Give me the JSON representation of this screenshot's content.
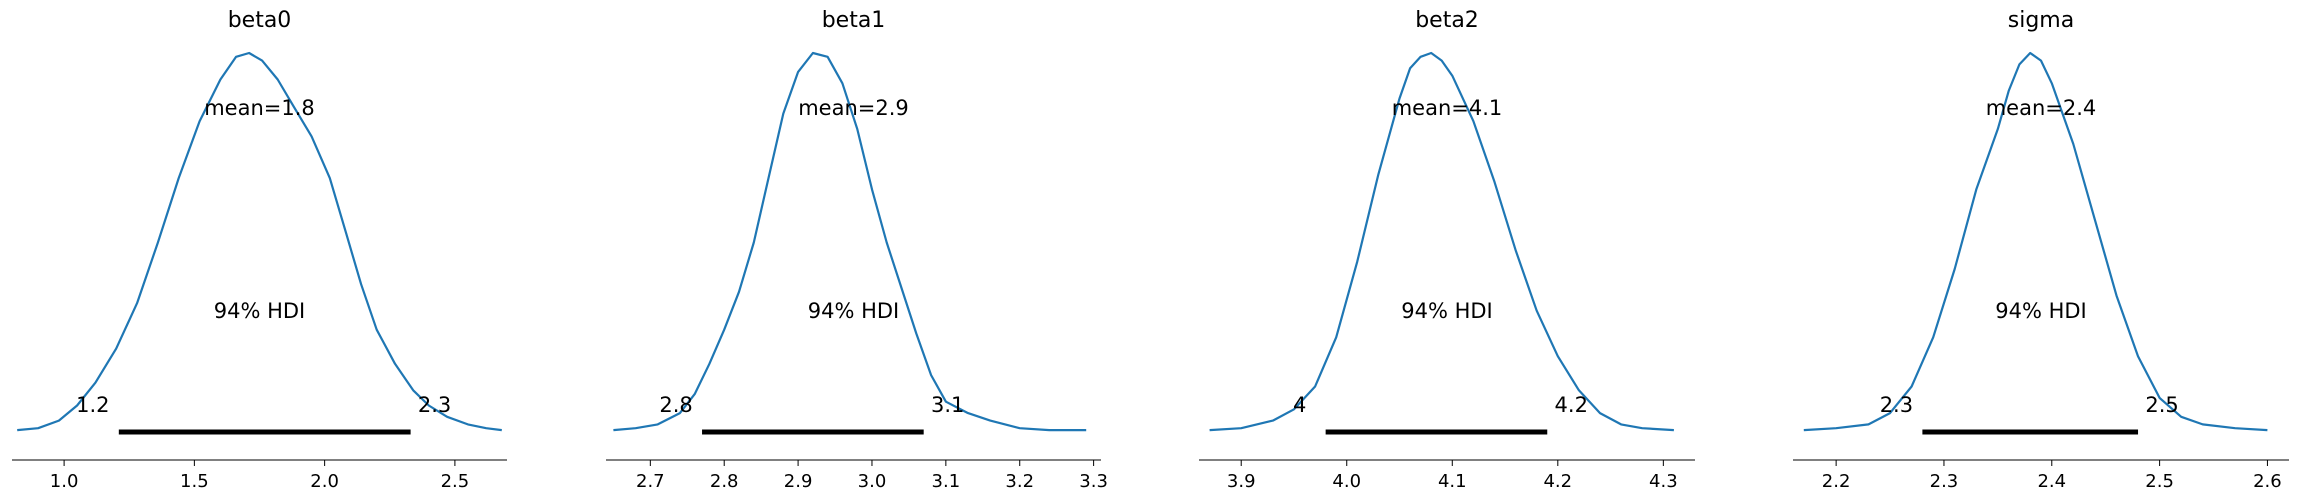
{
  "colors": {
    "density": "#1f77b4",
    "hdi_bar": "#000000",
    "axis": "#000000"
  },
  "chart_data": [
    {
      "type": "area",
      "title": "beta0",
      "mean_label": "mean=1.8",
      "hdi_label": "94% HDI",
      "hdi": [
        1.21,
        2.33
      ],
      "hdi_tick_labels": [
        "1.2",
        "2.3"
      ],
      "xlim": [
        0.8,
        2.7
      ],
      "xticks": [
        1.0,
        1.5,
        2.0,
        2.5
      ],
      "xtick_labels": [
        "1.0",
        "1.5",
        "2.0",
        "2.5"
      ],
      "density": {
        "x": [
          0.82,
          0.9,
          0.98,
          1.05,
          1.12,
          1.2,
          1.28,
          1.36,
          1.44,
          1.52,
          1.6,
          1.66,
          1.71,
          1.76,
          1.82,
          1.88,
          1.95,
          2.02,
          2.08,
          2.14,
          2.2,
          2.27,
          2.34,
          2.4,
          2.47,
          2.55,
          2.62,
          2.68
        ],
        "y": [
          0.005,
          0.01,
          0.03,
          0.07,
          0.13,
          0.22,
          0.34,
          0.5,
          0.67,
          0.82,
          0.93,
          0.99,
          1.0,
          0.98,
          0.93,
          0.86,
          0.78,
          0.67,
          0.53,
          0.39,
          0.27,
          0.18,
          0.11,
          0.07,
          0.04,
          0.02,
          0.01,
          0.005
        ]
      }
    },
    {
      "type": "area",
      "title": "beta1",
      "mean_label": "mean=2.9",
      "hdi_label": "94% HDI",
      "hdi": [
        2.77,
        3.07
      ],
      "hdi_tick_labels": [
        "2.8",
        "3.1"
      ],
      "xlim": [
        2.64,
        3.31
      ],
      "xticks": [
        2.7,
        2.8,
        2.9,
        3.0,
        3.1,
        3.2,
        3.3
      ],
      "xtick_labels": [
        "2.7",
        "2.8",
        "2.9",
        "3.0",
        "3.1",
        "3.2",
        "3.3"
      ],
      "density": {
        "x": [
          2.65,
          2.68,
          2.71,
          2.74,
          2.76,
          2.78,
          2.8,
          2.82,
          2.84,
          2.86,
          2.88,
          2.9,
          2.92,
          2.94,
          2.96,
          2.98,
          3.0,
          3.02,
          3.04,
          3.06,
          3.08,
          3.1,
          3.13,
          3.16,
          3.2,
          3.24,
          3.29
        ],
        "y": [
          0.005,
          0.01,
          0.02,
          0.05,
          0.1,
          0.18,
          0.27,
          0.37,
          0.5,
          0.67,
          0.84,
          0.95,
          1.0,
          0.99,
          0.92,
          0.8,
          0.64,
          0.5,
          0.38,
          0.26,
          0.15,
          0.08,
          0.05,
          0.03,
          0.01,
          0.005,
          0.005
        ]
      }
    },
    {
      "type": "area",
      "title": "beta2",
      "mean_label": "mean=4.1",
      "hdi_label": "94% HDI",
      "hdi": [
        3.98,
        4.19
      ],
      "hdi_tick_labels": [
        "4",
        "4.2"
      ],
      "xlim": [
        3.86,
        4.33
      ],
      "xticks": [
        3.9,
        4.0,
        4.1,
        4.2,
        4.3
      ],
      "xtick_labels": [
        "3.9",
        "4.0",
        "4.1",
        "4.2",
        "4.3"
      ],
      "density": {
        "x": [
          3.87,
          3.9,
          3.93,
          3.95,
          3.97,
          3.99,
          4.01,
          4.03,
          4.05,
          4.06,
          4.07,
          4.08,
          4.09,
          4.1,
          4.12,
          4.14,
          4.16,
          4.18,
          4.2,
          4.22,
          4.24,
          4.26,
          4.28,
          4.31
        ],
        "y": [
          0.005,
          0.01,
          0.03,
          0.06,
          0.12,
          0.25,
          0.45,
          0.68,
          0.88,
          0.96,
          0.99,
          1.0,
          0.98,
          0.94,
          0.82,
          0.66,
          0.48,
          0.32,
          0.2,
          0.11,
          0.05,
          0.02,
          0.01,
          0.005
        ]
      }
    },
    {
      "type": "area",
      "title": "sigma",
      "mean_label": "mean=2.4",
      "hdi_label": "94% HDI",
      "hdi": [
        2.28,
        2.48
      ],
      "hdi_tick_labels": [
        "2.3",
        "2.5"
      ],
      "xlim": [
        2.16,
        2.62
      ],
      "xticks": [
        2.2,
        2.3,
        2.4,
        2.5,
        2.6
      ],
      "xtick_labels": [
        "2.2",
        "2.3",
        "2.4",
        "2.5",
        "2.6"
      ],
      "density": {
        "x": [
          2.17,
          2.2,
          2.23,
          2.25,
          2.27,
          2.29,
          2.31,
          2.33,
          2.35,
          2.36,
          2.37,
          2.38,
          2.39,
          2.4,
          2.42,
          2.44,
          2.46,
          2.48,
          2.5,
          2.52,
          2.54,
          2.57,
          2.6
        ],
        "y": [
          0.005,
          0.01,
          0.02,
          0.05,
          0.12,
          0.25,
          0.43,
          0.64,
          0.8,
          0.9,
          0.97,
          1.0,
          0.98,
          0.92,
          0.76,
          0.56,
          0.36,
          0.2,
          0.09,
          0.04,
          0.02,
          0.01,
          0.005
        ]
      }
    }
  ]
}
